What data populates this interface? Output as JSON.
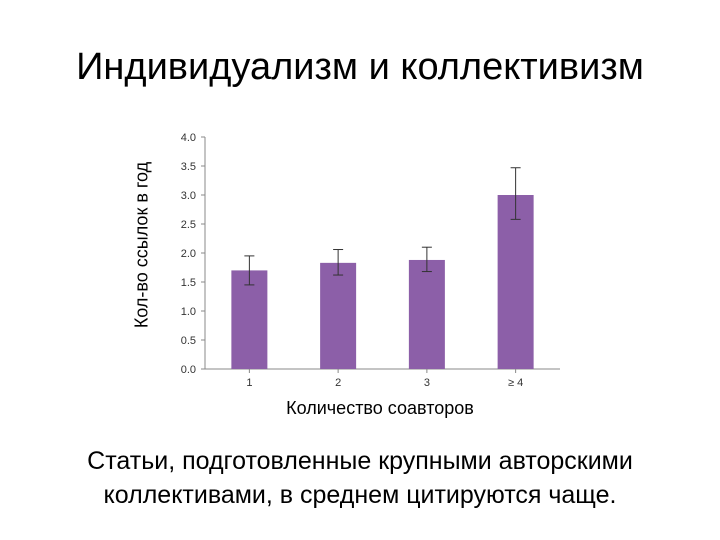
{
  "slide": {
    "title": "Индивидуализм и коллективизм",
    "caption_line1": "Статьи, подготовленные крупными авторскими",
    "caption_line2": "коллективами, в среднем цитируются чаще."
  },
  "chart_data": {
    "type": "bar",
    "ylabel": "Кол-во ссылок в год",
    "xlabel": "Количество соавторов",
    "categories": [
      "1",
      "2",
      "3",
      "≥ 4"
    ],
    "values": [
      1.7,
      1.83,
      1.88,
      3.0
    ],
    "error_low": [
      1.45,
      1.62,
      1.68,
      2.58
    ],
    "error_high": [
      1.95,
      2.06,
      2.1,
      3.47
    ],
    "ylim": [
      0,
      4.0
    ],
    "yticks": [
      "0.0",
      "0.5",
      "1.0",
      "1.5",
      "2.0",
      "2.5",
      "3.0",
      "3.5",
      "4.0"
    ],
    "bar_color": "#8c5fa8",
    "grid": false,
    "legend": "none"
  }
}
